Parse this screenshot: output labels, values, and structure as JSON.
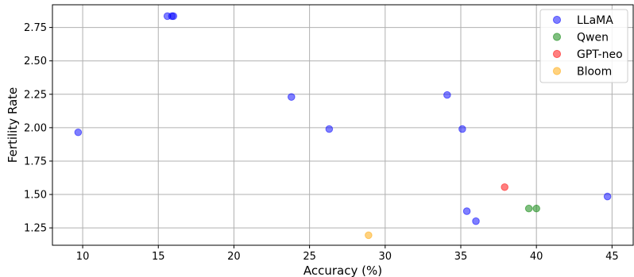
{
  "chart_data": {
    "type": "scatter",
    "title": "",
    "xlabel": "Accuracy (%)",
    "ylabel": "Fertility Rate",
    "xlim": [
      8,
      46.4
    ],
    "ylim": [
      1.12,
      2.92
    ],
    "xticks": [
      10,
      15,
      20,
      25,
      30,
      35,
      40,
      45
    ],
    "yticks": [
      1.25,
      1.5,
      1.75,
      2.0,
      2.25,
      2.5,
      2.75
    ],
    "ytick_labels": [
      "1.25",
      "1.50",
      "1.75",
      "2.00",
      "2.25",
      "2.50",
      "2.75"
    ],
    "grid": true,
    "legend_position": "top-right",
    "series": [
      {
        "name": "LLaMA",
        "color": "#0000ff",
        "points": [
          {
            "x": 9.7,
            "y": 1.965
          },
          {
            "x": 15.6,
            "y": 2.835
          },
          {
            "x": 15.9,
            "y": 2.835
          },
          {
            "x": 16.0,
            "y": 2.835
          },
          {
            "x": 23.8,
            "y": 2.23
          },
          {
            "x": 26.3,
            "y": 1.99
          },
          {
            "x": 34.1,
            "y": 2.245
          },
          {
            "x": 35.1,
            "y": 1.99
          },
          {
            "x": 35.4,
            "y": 1.375
          },
          {
            "x": 36.0,
            "y": 1.3
          },
          {
            "x": 44.7,
            "y": 1.485
          }
        ]
      },
      {
        "name": "Qwen",
        "color": "#008000",
        "points": [
          {
            "x": 39.5,
            "y": 1.395
          },
          {
            "x": 40.0,
            "y": 1.395
          }
        ]
      },
      {
        "name": "GPT-neo",
        "color": "#ff0000",
        "points": [
          {
            "x": 37.9,
            "y": 1.555
          }
        ]
      },
      {
        "name": "Bloom",
        "color": "#ffa500",
        "points": [
          {
            "x": 28.9,
            "y": 1.195
          }
        ]
      }
    ]
  }
}
